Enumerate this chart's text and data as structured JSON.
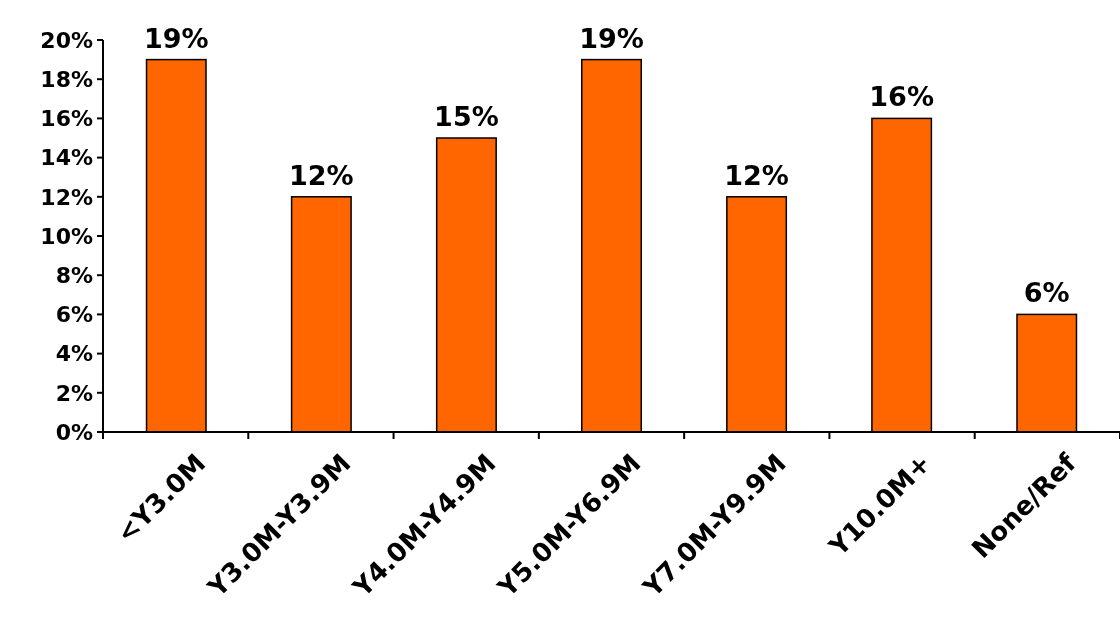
{
  "chart_data": {
    "type": "bar",
    "categories": [
      "<Y3.0M",
      "Y3.0M-Y3.9M",
      "Y4.0M-Y4.9M",
      "Y5.0M-Y6.9M",
      "Y7.0M-Y9.9M",
      "Y10.0M+",
      "None/Ref"
    ],
    "values": [
      19,
      12,
      15,
      19,
      12,
      16,
      6
    ],
    "value_labels": [
      "19%",
      "12%",
      "15%",
      "19%",
      "12%",
      "16%",
      "6%"
    ],
    "color": "#ff6600",
    "ylim": [
      0,
      20
    ],
    "yticks": [
      {
        "value": 0,
        "label": "0%"
      },
      {
        "value": 2,
        "label": "2%"
      },
      {
        "value": 4,
        "label": "4%"
      },
      {
        "value": 6,
        "label": "6%"
      },
      {
        "value": 8,
        "label": "8%"
      },
      {
        "value": 10,
        "label": "10%"
      },
      {
        "value": 12,
        "label": "12%"
      },
      {
        "value": 14,
        "label": "14%"
      },
      {
        "value": 16,
        "label": "16%"
      },
      {
        "value": 18,
        "label": "18%"
      },
      {
        "value": 20,
        "label": "20%"
      }
    ],
    "grid": false
  }
}
